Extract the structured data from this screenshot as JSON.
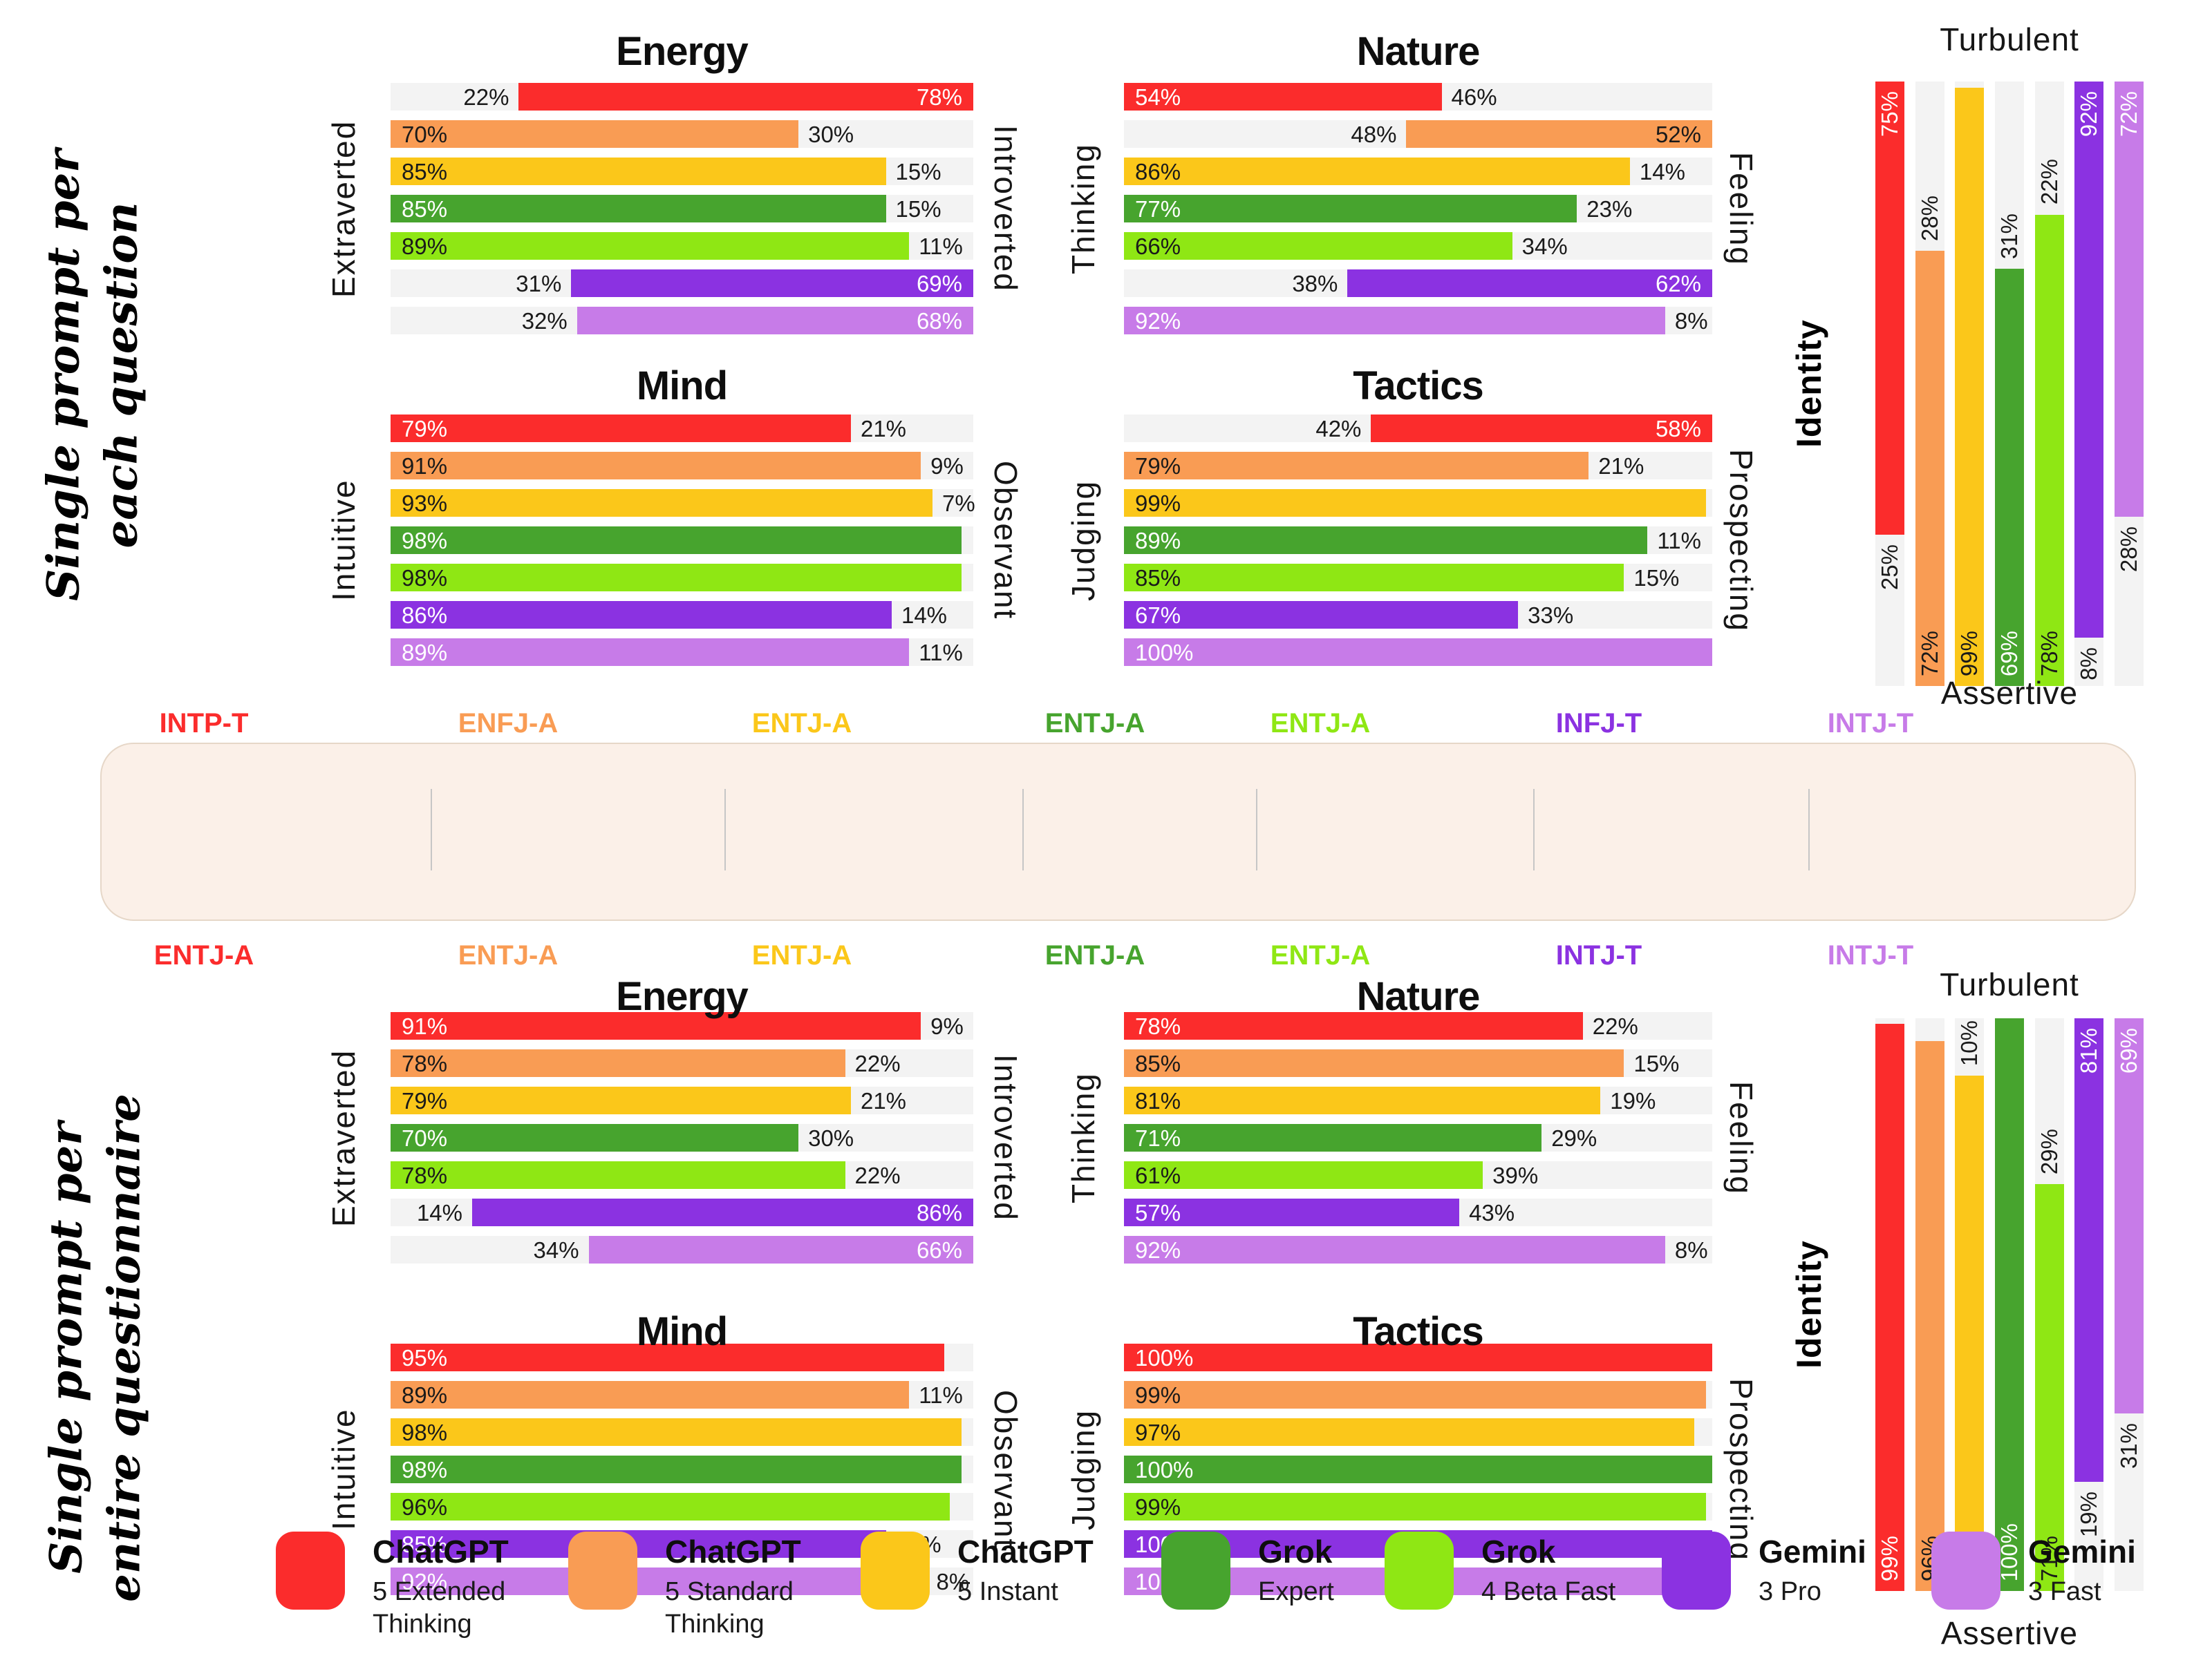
{
  "sections": [
    {
      "title_lines": [
        "Single prompt per",
        "each question"
      ]
    },
    {
      "title_lines": [
        "Single prompt per",
        "entire questionnaire"
      ]
    }
  ],
  "models": [
    {
      "name": "ChatGPT",
      "sub": "5 Extended\nThinking",
      "color": "#FB2C2C",
      "inside_label_color": "#FFFFFF",
      "result_per_question": "INTP-T",
      "result_per_questionnaire": "ENTJ-A"
    },
    {
      "name": "ChatGPT",
      "sub": "5 Standard\nThinking",
      "color": "#F99C54",
      "inside_label_color": "#1a1a1a",
      "result_per_question": "ENFJ-A",
      "result_per_questionnaire": "ENTJ-A"
    },
    {
      "name": "ChatGPT",
      "sub": "5 Instant",
      "color": "#FBC71A",
      "inside_label_color": "#1a1a1a",
      "result_per_question": "ENTJ-A",
      "result_per_questionnaire": "ENTJ-A"
    },
    {
      "name": "Grok",
      "sub": "Expert",
      "color": "#47A42E",
      "inside_label_color": "#FFFFFF",
      "result_per_question": "ENTJ-A",
      "result_per_questionnaire": "ENTJ-A"
    },
    {
      "name": "Grok",
      "sub": "4 Beta Fast",
      "color": "#8FE714",
      "inside_label_color": "#1a1a1a",
      "result_per_question": "ENTJ-A",
      "result_per_questionnaire": "ENTJ-A"
    },
    {
      "name": "Gemini",
      "sub": "3 Pro",
      "color": "#8B32E1",
      "inside_label_color": "#FFFFFF",
      "result_per_question": "INFJ-T",
      "result_per_questionnaire": "INTJ-T"
    },
    {
      "name": "Gemini",
      "sub": "3 Fast",
      "color": "#C77BE8",
      "inside_label_color": "#FFFFFF",
      "result_per_question": "INTJ-T",
      "result_per_questionnaire": "INTJ-T"
    }
  ],
  "chart_data": [
    {
      "id": "q-energy",
      "type": "bar",
      "orientation": "horizontal",
      "title": "Energy",
      "section": "Single prompt per each question",
      "left_axis": "Extraverted",
      "right_axis": "Introverted",
      "rows": [
        {
          "from": 22,
          "to": 100,
          "left_label": "22%",
          "right_label": "78%"
        },
        {
          "from": 0,
          "to": 70,
          "left_label": "70%",
          "right_label": "30%"
        },
        {
          "from": 0,
          "to": 85,
          "left_label": "85%",
          "right_label": "15%"
        },
        {
          "from": 0,
          "to": 85,
          "left_label": "85%",
          "right_label": "15%"
        },
        {
          "from": 0,
          "to": 89,
          "left_label": "89%",
          "right_label": "11%"
        },
        {
          "from": 31,
          "to": 100,
          "left_label": "31%",
          "right_label": "69%"
        },
        {
          "from": 32,
          "to": 100,
          "left_label": "32%",
          "right_label": "68%"
        }
      ]
    },
    {
      "id": "q-nature",
      "type": "bar",
      "orientation": "horizontal",
      "title": "Nature",
      "section": "Single prompt per each question",
      "left_axis": "Thinking",
      "right_axis": "Feeling",
      "rows": [
        {
          "from": 0,
          "to": 54,
          "left_label": "54%",
          "right_label": "46%"
        },
        {
          "from": 48,
          "to": 100,
          "left_label": "48%",
          "right_label": "52%"
        },
        {
          "from": 0,
          "to": 86,
          "left_label": "86%",
          "right_label": "14%"
        },
        {
          "from": 0,
          "to": 77,
          "left_label": "77%",
          "right_label": "23%"
        },
        {
          "from": 0,
          "to": 66,
          "left_label": "66%",
          "right_label": "34%"
        },
        {
          "from": 38,
          "to": 100,
          "left_label": "38%",
          "right_label": "62%"
        },
        {
          "from": 0,
          "to": 92,
          "left_label": "92%",
          "right_label": "8%"
        }
      ]
    },
    {
      "id": "q-mind",
      "type": "bar",
      "orientation": "horizontal",
      "title": "Mind",
      "section": "Single prompt per each question",
      "left_axis": "Intuitive",
      "right_axis": "Observant",
      "rows": [
        {
          "from": 0,
          "to": 79,
          "left_label": "79%",
          "right_label": "21%"
        },
        {
          "from": 0,
          "to": 91,
          "left_label": "91%",
          "right_label": "9%"
        },
        {
          "from": 0,
          "to": 93,
          "left_label": "93%",
          "right_label": "7%"
        },
        {
          "from": 0,
          "to": 98,
          "left_label": "98%",
          "right_label": null
        },
        {
          "from": 0,
          "to": 98,
          "left_label": "98%",
          "right_label": null
        },
        {
          "from": 0,
          "to": 86,
          "left_label": "86%",
          "right_label": "14%"
        },
        {
          "from": 0,
          "to": 89,
          "left_label": "89%",
          "right_label": "11%"
        }
      ]
    },
    {
      "id": "q-tactics",
      "type": "bar",
      "orientation": "horizontal",
      "title": "Tactics",
      "section": "Single prompt per each question",
      "left_axis": "Judging",
      "right_axis": "Prospecting",
      "rows": [
        {
          "from": 42,
          "to": 100,
          "left_label": "42%",
          "right_label": "58%"
        },
        {
          "from": 0,
          "to": 79,
          "left_label": "79%",
          "right_label": "21%"
        },
        {
          "from": 0,
          "to": 99,
          "left_label": "99%",
          "right_label": null
        },
        {
          "from": 0,
          "to": 89,
          "left_label": "89%",
          "right_label": "11%"
        },
        {
          "from": 0,
          "to": 85,
          "left_label": "85%",
          "right_label": "15%"
        },
        {
          "from": 0,
          "to": 67,
          "left_label": "67%",
          "right_label": "33%"
        },
        {
          "from": 0,
          "to": 100,
          "left_label": "100%",
          "right_label": null
        }
      ]
    },
    {
      "id": "q-identity",
      "type": "bar",
      "orientation": "vertical",
      "section": "Single prompt per each question",
      "top_axis": "Turbulent",
      "bottom_axis": "Assertive",
      "side_axis": "Identity",
      "cols": [
        {
          "anchor": "top",
          "size": 75,
          "top_label": "75%",
          "bottom_label": "25%"
        },
        {
          "anchor": "bottom",
          "size": 72,
          "top_label": "28%",
          "bottom_label": "72%"
        },
        {
          "anchor": "bottom",
          "size": 99,
          "top_label": null,
          "bottom_label": "99%"
        },
        {
          "anchor": "bottom",
          "size": 69,
          "top_label": "31%",
          "bottom_label": "69%"
        },
        {
          "anchor": "bottom",
          "size": 78,
          "top_label": "22%",
          "bottom_label": "78%"
        },
        {
          "anchor": "top",
          "size": 92,
          "top_label": "92%",
          "bottom_label": "8%"
        },
        {
          "anchor": "top",
          "size": 72,
          "top_label": "72%",
          "bottom_label": "28%"
        }
      ]
    },
    {
      "id": "f-energy",
      "type": "bar",
      "orientation": "horizontal",
      "title": "Energy",
      "section": "Single prompt per entire questionnaire",
      "left_axis": "Extraverted",
      "right_axis": "Introverted",
      "rows": [
        {
          "from": 0,
          "to": 91,
          "left_label": "91%",
          "right_label": "9%"
        },
        {
          "from": 0,
          "to": 78,
          "left_label": "78%",
          "right_label": "22%"
        },
        {
          "from": 0,
          "to": 79,
          "left_label": "79%",
          "right_label": "21%"
        },
        {
          "from": 0,
          "to": 70,
          "left_label": "70%",
          "right_label": "30%"
        },
        {
          "from": 0,
          "to": 78,
          "left_label": "78%",
          "right_label": "22%"
        },
        {
          "from": 14,
          "to": 100,
          "left_label": "14%",
          "right_label": "86%"
        },
        {
          "from": 34,
          "to": 100,
          "left_label": "34%",
          "right_label": "66%"
        }
      ]
    },
    {
      "id": "f-nature",
      "type": "bar",
      "orientation": "horizontal",
      "title": "Nature",
      "section": "Single prompt per entire questionnaire",
      "left_axis": "Thinking",
      "right_axis": "Feeling",
      "rows": [
        {
          "from": 0,
          "to": 78,
          "left_label": "78%",
          "right_label": "22%"
        },
        {
          "from": 0,
          "to": 85,
          "left_label": "85%",
          "right_label": "15%"
        },
        {
          "from": 0,
          "to": 81,
          "left_label": "81%",
          "right_label": "19%"
        },
        {
          "from": 0,
          "to": 71,
          "left_label": "71%",
          "right_label": "29%"
        },
        {
          "from": 0,
          "to": 61,
          "left_label": "61%",
          "right_label": "39%"
        },
        {
          "from": 0,
          "to": 57,
          "left_label": "57%",
          "right_label": "43%"
        },
        {
          "from": 0,
          "to": 92,
          "left_label": "92%",
          "right_label": "8%"
        }
      ]
    },
    {
      "id": "f-mind",
      "type": "bar",
      "orientation": "horizontal",
      "title": "Mind",
      "section": "Single prompt per entire questionnaire",
      "left_axis": "Intuitive",
      "right_axis": "Observant",
      "rows": [
        {
          "from": 0,
          "to": 95,
          "left_label": "95%",
          "right_label": null
        },
        {
          "from": 0,
          "to": 89,
          "left_label": "89%",
          "right_label": "11%"
        },
        {
          "from": 0,
          "to": 98,
          "left_label": "98%",
          "right_label": null
        },
        {
          "from": 0,
          "to": 98,
          "left_label": "98%",
          "right_label": null
        },
        {
          "from": 0,
          "to": 96,
          "left_label": "96%",
          "right_label": null
        },
        {
          "from": 0,
          "to": 85,
          "left_label": "85%",
          "right_label": "15%"
        },
        {
          "from": 0,
          "to": 92,
          "left_label": "92%",
          "right_label": "8%"
        }
      ]
    },
    {
      "id": "f-tactics",
      "type": "bar",
      "orientation": "horizontal",
      "title": "Tactics",
      "section": "Single prompt per entire questionnaire",
      "left_axis": "Judging",
      "right_axis": "Prospecting",
      "rows": [
        {
          "from": 0,
          "to": 100,
          "left_label": "100%",
          "right_label": null
        },
        {
          "from": 0,
          "to": 99,
          "left_label": "99%",
          "right_label": null
        },
        {
          "from": 0,
          "to": 97,
          "left_label": "97%",
          "right_label": null
        },
        {
          "from": 0,
          "to": 100,
          "left_label": "100%",
          "right_label": null
        },
        {
          "from": 0,
          "to": 99,
          "left_label": "99%",
          "right_label": null
        },
        {
          "from": 0,
          "to": 100,
          "left_label": "100%",
          "right_label": null
        },
        {
          "from": 0,
          "to": 100,
          "left_label": "100%",
          "right_label": null
        }
      ]
    },
    {
      "id": "f-identity",
      "type": "bar",
      "orientation": "vertical",
      "section": "Single prompt per entire questionnaire",
      "top_axis": "Turbulent",
      "bottom_axis": "Assertive",
      "side_axis": "Identity",
      "cols": [
        {
          "anchor": "bottom",
          "size": 99,
          "top_label": null,
          "bottom_label": "99%"
        },
        {
          "anchor": "bottom",
          "size": 96,
          "top_label": null,
          "bottom_label": "96%"
        },
        {
          "anchor": "bottom",
          "size": 90,
          "top_label": "10%",
          "bottom_label": "90%"
        },
        {
          "anchor": "bottom",
          "size": 100,
          "top_label": null,
          "bottom_label": "100%"
        },
        {
          "anchor": "bottom",
          "size": 71,
          "top_label": "29%",
          "bottom_label": "71%"
        },
        {
          "anchor": "top",
          "size": 81,
          "top_label": "81%",
          "bottom_label": "19%"
        },
        {
          "anchor": "top",
          "size": 69,
          "top_label": "69%",
          "bottom_label": "31%"
        }
      ]
    }
  ],
  "style_tokens": {
    "track_color": "#f3f3f3",
    "legend_bg": "#FBF0E8",
    "legend_border": "#E6D7C8",
    "outside_label_color": "#1a1a1a"
  }
}
